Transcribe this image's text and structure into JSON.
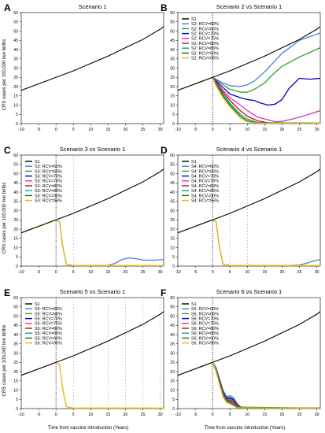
{
  "ylabel": "CRS cases per 100,000 live births",
  "xlabel": "Time from vaccine introduction (Years)",
  "colors": {
    "S1": "#000000",
    "rcv60": "#4a7fd6",
    "rcv65": "#2ca02c",
    "rcv70": "#0000cc",
    "rcv75": "#cc33cc",
    "rcv80": "#e00000",
    "rcv85": "#00aa99",
    "rcv90": "#117711",
    "rcv95": "#e8b800",
    "vline": "#000000",
    "dashline": "#aaaaaa"
  },
  "chart_data": [
    {
      "type": "line",
      "letter": "A",
      "title": "Scenario 1",
      "xlim": [
        -10,
        31
      ],
      "ylim": [
        0,
        60
      ],
      "xticks": [
        "-10",
        "-5",
        "0",
        "5",
        "10",
        "15",
        "20",
        "25",
        "30"
      ],
      "yticks": [
        "0",
        "5",
        "10",
        "15",
        "20",
        "25",
        "30",
        "35",
        "40",
        "45",
        "50",
        "55",
        "60"
      ],
      "vlines": [],
      "dashlines": [],
      "legend": [],
      "series": [
        {
          "name": "S1",
          "color_key": "S1",
          "x": [
            -10,
            -5,
            0,
            5,
            10,
            15,
            20,
            25,
            30,
            31
          ],
          "y": [
            18,
            21.5,
            25,
            28.5,
            32.5,
            36.5,
            41,
            45.5,
            51,
            52.5
          ]
        }
      ]
    },
    {
      "type": "line",
      "letter": "B",
      "title": "Scenario 2 vs Scenario 1",
      "xlim": [
        -10,
        31
      ],
      "ylim": [
        0,
        60
      ],
      "xticks": [
        "-10",
        "-5",
        "0",
        "5",
        "10",
        "15",
        "20",
        "25",
        "30"
      ],
      "yticks": [
        "0",
        "5",
        "10",
        "15",
        "20",
        "25",
        "30",
        "35",
        "40",
        "45",
        "50",
        "55",
        "60"
      ],
      "vlines": [
        0
      ],
      "dashlines": [],
      "legend": [
        "S1",
        "S2: RCV=60%",
        "S2: RCV=65%",
        "S2: RCV=70%",
        "S2: RCV=75%",
        "S2: RCV=80%",
        "S2: RCV=85%",
        "S2: RCV=90%",
        "S2: RCV=95%"
      ],
      "series": [
        {
          "name": "S1",
          "color_key": "S1",
          "x": [
            -10,
            -5,
            0,
            5,
            10,
            15,
            20,
            25,
            30,
            31
          ],
          "y": [
            18,
            21.5,
            25,
            28.5,
            32.5,
            36.5,
            41,
            45.5,
            51,
            52.5
          ]
        },
        {
          "name": "S2: RCV=60%",
          "color_key": "rcv60",
          "x": [
            0,
            1,
            3,
            5,
            8,
            10,
            12,
            15,
            18,
            20,
            25,
            31
          ],
          "y": [
            25,
            24,
            22,
            20.5,
            20,
            21,
            23,
            28,
            34,
            38,
            45,
            49
          ]
        },
        {
          "name": "S2: RCV=65%",
          "color_key": "rcv65",
          "x": [
            0,
            1,
            3,
            5,
            8,
            10,
            12,
            15,
            17,
            20,
            25,
            31
          ],
          "y": [
            25,
            23.5,
            21,
            18.5,
            17,
            17,
            18.5,
            22,
            26,
            31,
            36,
            41
          ]
        },
        {
          "name": "S2: RCV=70%",
          "color_key": "rcv70",
          "x": [
            0,
            1,
            3,
            5,
            8,
            10,
            12,
            14,
            16,
            18,
            20,
            22,
            25,
            28,
            31
          ],
          "y": [
            25,
            23,
            19.5,
            16,
            14,
            13,
            12.5,
            11,
            10,
            10.5,
            13,
            19,
            24.5,
            24,
            24.5
          ]
        },
        {
          "name": "S2: RCV=75%",
          "color_key": "rcv75",
          "x": [
            0,
            1,
            3,
            5,
            8,
            10,
            13,
            16,
            18,
            20,
            23,
            26,
            31
          ],
          "y": [
            25,
            22.5,
            18,
            14,
            10,
            7,
            3.5,
            2,
            1,
            1.2,
            2.5,
            4,
            7
          ]
        },
        {
          "name": "S2: RCV=80%",
          "color_key": "rcv80",
          "x": [
            0,
            1,
            3,
            5,
            8,
            10,
            13,
            16,
            31
          ],
          "y": [
            25,
            22,
            17,
            12.5,
            7,
            4,
            1.5,
            0.4,
            0.2
          ]
        },
        {
          "name": "S2: RCV=85%",
          "color_key": "rcv85",
          "x": [
            0,
            1,
            3,
            5,
            8,
            10,
            13,
            31
          ],
          "y": [
            25,
            21.5,
            16,
            11,
            5,
            2.5,
            0.5,
            0.2
          ]
        },
        {
          "name": "S2: RCV=90%",
          "color_key": "rcv90",
          "x": [
            0,
            1,
            3,
            5,
            8,
            10,
            13,
            31
          ],
          "y": [
            25,
            21,
            15,
            10,
            4,
            1.5,
            0.3,
            0.2
          ]
        },
        {
          "name": "S2: RCV=95%",
          "color_key": "rcv95",
          "x": [
            -10,
            -5,
            0,
            1,
            3,
            5,
            8,
            10,
            13,
            31
          ],
          "y": [
            18,
            21.5,
            25,
            20.5,
            14,
            9,
            3,
            1,
            0.2,
            0.2
          ]
        }
      ]
    },
    {
      "type": "line",
      "letter": "C",
      "title": "Scenario 3 vs Scenario 1",
      "xlim": [
        -10,
        31
      ],
      "ylim": [
        0,
        60
      ],
      "xticks": [
        "-10",
        "-5",
        "0",
        "5",
        "10",
        "15",
        "20",
        "25",
        "30"
      ],
      "yticks": [
        "0",
        "5",
        "10",
        "15",
        "20",
        "25",
        "30",
        "35",
        "40",
        "45",
        "50",
        "55",
        "60"
      ],
      "vlines": [
        0
      ],
      "dashlines": [
        5
      ],
      "legend": [
        "S1",
        "S3: RCV=60%",
        "S3: RCV=65%",
        "S3: RCV=70%",
        "S3: RCV=75%",
        "S3: RCV=80%",
        "S3: RCV=85%",
        "S3: RCV=90%",
        "S3: RCV=95%"
      ],
      "series": [
        {
          "name": "S1",
          "color_key": "S1",
          "x": [
            -10,
            -5,
            0,
            5,
            10,
            15,
            20,
            25,
            30,
            31
          ],
          "y": [
            18,
            21.5,
            25,
            28.5,
            32.5,
            36.5,
            41,
            45.5,
            51,
            52.5
          ]
        },
        {
          "name": "S3: RCV=60%",
          "color_key": "rcv60",
          "x": [
            0,
            1,
            2,
            3,
            5,
            15,
            17,
            19,
            21,
            23,
            25,
            28,
            31
          ],
          "y": [
            25,
            24,
            10,
            1,
            0.3,
            0.4,
            1.5,
            3.5,
            4.5,
            4,
            3.3,
            3.2,
            3.5
          ]
        },
        {
          "name": "S3: RCV=95%",
          "color_key": "rcv95",
          "x": [
            -10,
            -5,
            0,
            1,
            2,
            3,
            5,
            31
          ],
          "y": [
            18,
            21.5,
            25,
            24,
            10,
            1,
            0.3,
            0.3
          ]
        }
      ]
    },
    {
      "type": "line",
      "letter": "D",
      "title": "Scenario 4 vs Scenario 1",
      "xlim": [
        -10,
        31
      ],
      "ylim": [
        0,
        60
      ],
      "xticks": [
        "-10",
        "-5",
        "0",
        "5",
        "10",
        "15",
        "20",
        "25",
        "30"
      ],
      "yticks": [
        "0",
        "5",
        "10",
        "15",
        "20",
        "25",
        "30",
        "35",
        "40",
        "45",
        "50",
        "55",
        "60"
      ],
      "vlines": [
        0
      ],
      "dashlines": [
        5,
        10
      ],
      "legend": [
        "S1",
        "S4: RCV=60%",
        "S4: RCV=65%",
        "S4: RCV=70%",
        "S4: RCV=75%",
        "S4: RCV=80%",
        "S4: RCV=85%",
        "S4: RCV=90%",
        "S4: RCV=95%"
      ],
      "series": [
        {
          "name": "S1",
          "color_key": "S1",
          "x": [
            -10,
            -5,
            0,
            5,
            10,
            15,
            20,
            25,
            30,
            31
          ],
          "y": [
            18,
            21.5,
            25,
            28.5,
            32.5,
            36.5,
            41,
            45.5,
            51,
            52.5
          ]
        },
        {
          "name": "S4: RCV=60%",
          "color_key": "rcv60",
          "x": [
            0,
            1,
            2,
            3,
            5,
            22,
            25,
            27,
            29,
            31
          ],
          "y": [
            25,
            24,
            10,
            1,
            0.3,
            0.3,
            0.6,
            1.5,
            2.8,
            3.5
          ]
        },
        {
          "name": "S4: RCV=95%",
          "color_key": "rcv95",
          "x": [
            -10,
            -5,
            0,
            1,
            2,
            3,
            5,
            31
          ],
          "y": [
            18,
            21.5,
            25,
            24,
            10,
            1,
            0.3,
            0.3
          ]
        }
      ]
    },
    {
      "type": "line",
      "letter": "E",
      "title": "Scenario 5 vs Scenario 1",
      "xlim": [
        -10,
        31
      ],
      "ylim": [
        0,
        60
      ],
      "xticks": [
        "-10",
        "-5",
        "0",
        "5",
        "10",
        "15",
        "20",
        "25",
        "30"
      ],
      "yticks": [
        "0",
        "5",
        "10",
        "15",
        "20",
        "25",
        "30",
        "35",
        "40",
        "45",
        "50",
        "55",
        "60"
      ],
      "vlines": [
        0
      ],
      "dashlines": [
        5,
        10,
        15,
        20,
        25,
        30
      ],
      "legend": [
        "S1",
        "S5: RCV=60%",
        "S5: RCV=65%",
        "S5: RCV=70%",
        "S5: RCV=75%",
        "S5: RCV=80%",
        "S5: RCV=85%",
        "S5: RCV=90%",
        "S5: RCV=95%"
      ],
      "series": [
        {
          "name": "S1",
          "color_key": "S1",
          "x": [
            -10,
            -5,
            0,
            5,
            10,
            15,
            20,
            25,
            30,
            31
          ],
          "y": [
            18,
            21.5,
            25,
            28.5,
            32.5,
            36.5,
            41,
            45.5,
            51,
            52.5
          ]
        },
        {
          "name": "S5: RCV=95%",
          "color_key": "rcv95",
          "x": [
            -10,
            -5,
            0,
            1,
            2,
            3,
            5,
            31
          ],
          "y": [
            18,
            21.5,
            25,
            24,
            10,
            1,
            0.3,
            0.3
          ]
        }
      ]
    },
    {
      "type": "line",
      "letter": "F",
      "title": "Scenario 6 vs Scenario 1",
      "xlim": [
        -10,
        31
      ],
      "ylim": [
        0,
        60
      ],
      "xticks": [
        "-10",
        "-5",
        "0",
        "5",
        "10",
        "15",
        "20",
        "25",
        "30"
      ],
      "yticks": [
        "0",
        "5",
        "10",
        "15",
        "20",
        "25",
        "30",
        "35",
        "40",
        "45",
        "50",
        "55",
        "60"
      ],
      "vlines": [
        0
      ],
      "dashlines": [],
      "legend": [
        "S1",
        "S6: RCV=60%",
        "S6: RCV=65%",
        "S6: RCV=70%",
        "S6: RCV=75%",
        "S6: RCV=80%",
        "S6: RCV=85%",
        "S6: RCV=90%",
        "S6: RCV=95%"
      ],
      "series": [
        {
          "name": "S1",
          "color_key": "S1",
          "x": [
            -10,
            -5,
            0,
            5,
            10,
            15,
            20,
            25,
            30,
            31
          ],
          "y": [
            18,
            21.5,
            25,
            28.5,
            32.5,
            36.5,
            41,
            45.5,
            51,
            52.5
          ]
        },
        {
          "name": "S6: RCV=60%",
          "color_key": "rcv60",
          "x": [
            0,
            1,
            2,
            3,
            4,
            5,
            6,
            7,
            8,
            9,
            31
          ],
          "y": [
            25,
            22,
            16,
            10,
            6.5,
            7,
            6,
            3,
            1,
            0.3,
            0.2
          ]
        },
        {
          "name": "S6: RCV=65%",
          "color_key": "rcv65",
          "x": [
            0,
            1,
            2,
            3,
            4,
            5,
            6,
            7,
            8,
            9,
            31
          ],
          "y": [
            25,
            22,
            16,
            9.5,
            6,
            6.2,
            5.3,
            2.5,
            0.8,
            0.3,
            0.2
          ]
        },
        {
          "name": "S6: RCV=70%",
          "color_key": "rcv70",
          "x": [
            0,
            1,
            2,
            3,
            4,
            5,
            6,
            7,
            8,
            9,
            31
          ],
          "y": [
            25,
            21.5,
            15.5,
            9,
            5.5,
            5.6,
            4.7,
            2.2,
            0.6,
            0.2,
            0.2
          ]
        },
        {
          "name": "S6: RCV=75%",
          "color_key": "rcv75",
          "x": [
            0,
            1,
            2,
            3,
            4,
            5,
            6,
            7,
            8,
            31
          ],
          "y": [
            25,
            21.5,
            15,
            8.5,
            5,
            5,
            4,
            1.8,
            0.4,
            0.2
          ]
        },
        {
          "name": "S6: RCV=80%",
          "color_key": "rcv80",
          "x": [
            0,
            1,
            2,
            3,
            4,
            5,
            6,
            7,
            8,
            31
          ],
          "y": [
            25,
            21,
            14.5,
            8,
            4.6,
            4.4,
            3.4,
            1.4,
            0.3,
            0.2
          ]
        },
        {
          "name": "S6: RCV=85%",
          "color_key": "rcv85",
          "x": [
            0,
            1,
            2,
            3,
            4,
            5,
            6,
            7,
            8,
            31
          ],
          "y": [
            25,
            21,
            14,
            7.5,
            4.2,
            3.8,
            2.8,
            1.1,
            0.3,
            0.2
          ]
        },
        {
          "name": "S6: RCV=90%",
          "color_key": "rcv90",
          "x": [
            0,
            1,
            2,
            3,
            4,
            5,
            6,
            7,
            31
          ],
          "y": [
            25,
            20.5,
            13.5,
            7,
            3.8,
            3.2,
            2.2,
            0.8,
            0.2
          ]
        },
        {
          "name": "S6: RCV=95%",
          "color_key": "rcv95",
          "x": [
            -10,
            -5,
            0,
            1,
            2,
            3,
            4,
            5,
            6,
            7,
            31
          ],
          "y": [
            18,
            21.5,
            25,
            20,
            13,
            6.5,
            3.4,
            2.6,
            1.6,
            0.5,
            0.2
          ]
        }
      ]
    }
  ]
}
